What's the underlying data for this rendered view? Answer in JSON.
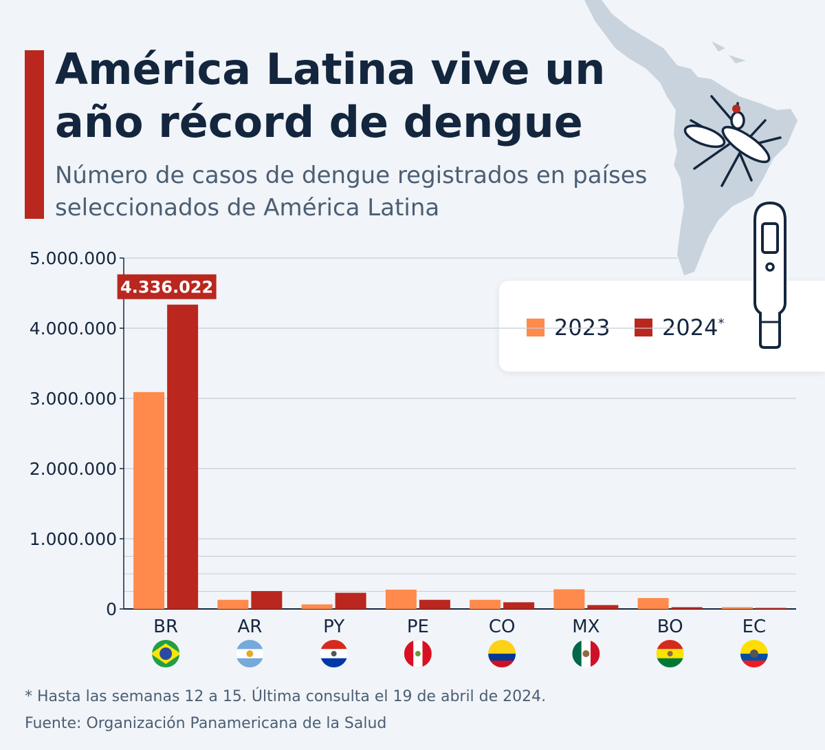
{
  "header": {
    "title": "América Latina vive un año récord de dengue",
    "subtitle": "Número de casos de dengue registrados en países seleccionados de América Latina"
  },
  "footer": {
    "footnote": "* Hasta las semanas 12 a 15. Última consulta el 19 de abril de 2024.",
    "source": "Fuente: Organización Panamericana de la Salud"
  },
  "icons": {
    "map": "south-america-map-icon",
    "mosquito": "mosquito-icon",
    "thermometer": "thermometer-icon"
  },
  "colors": {
    "accent": "#b9271f",
    "series_2023": "#ff8a4c",
    "series_2024": "#b9271f",
    "title": "#13263e",
    "grid": "#c5cdd8"
  },
  "chart_data": {
    "type": "bar",
    "title": "",
    "xlabel": "",
    "ylabel": "",
    "categories": [
      "BR",
      "AR",
      "PY",
      "PE",
      "CO",
      "MX",
      "BO",
      "EC"
    ],
    "series": [
      {
        "name": "2023",
        "values": [
          3090000,
          130000,
          65000,
          275000,
          130000,
          280000,
          155000,
          25000
        ]
      },
      {
        "name": "2024*",
        "values": [
          4336022,
          255000,
          230000,
          130000,
          95000,
          55000,
          25000,
          15000
        ]
      }
    ],
    "ylim": [
      0,
      5000000
    ],
    "y_ticks": [
      "0",
      "1.000.000",
      "2.000.000",
      "3.000.000",
      "4.000.000",
      "5.000.000"
    ],
    "y_tick_values": [
      0,
      1000000,
      2000000,
      3000000,
      4000000,
      5000000
    ],
    "minor_gridlines": [
      250000,
      500000,
      750000
    ],
    "grid": true,
    "legend": {
      "position": "top-right",
      "entries": [
        "2023",
        "2024"
      ],
      "note_mark": "*"
    },
    "annotation": {
      "category": "BR",
      "series": "2024*",
      "label": "4.336.022"
    },
    "flags": [
      "brazil-flag-icon",
      "argentina-flag-icon",
      "paraguay-flag-icon",
      "peru-flag-icon",
      "colombia-flag-icon",
      "mexico-flag-icon",
      "bolivia-flag-icon",
      "ecuador-flag-icon"
    ]
  }
}
